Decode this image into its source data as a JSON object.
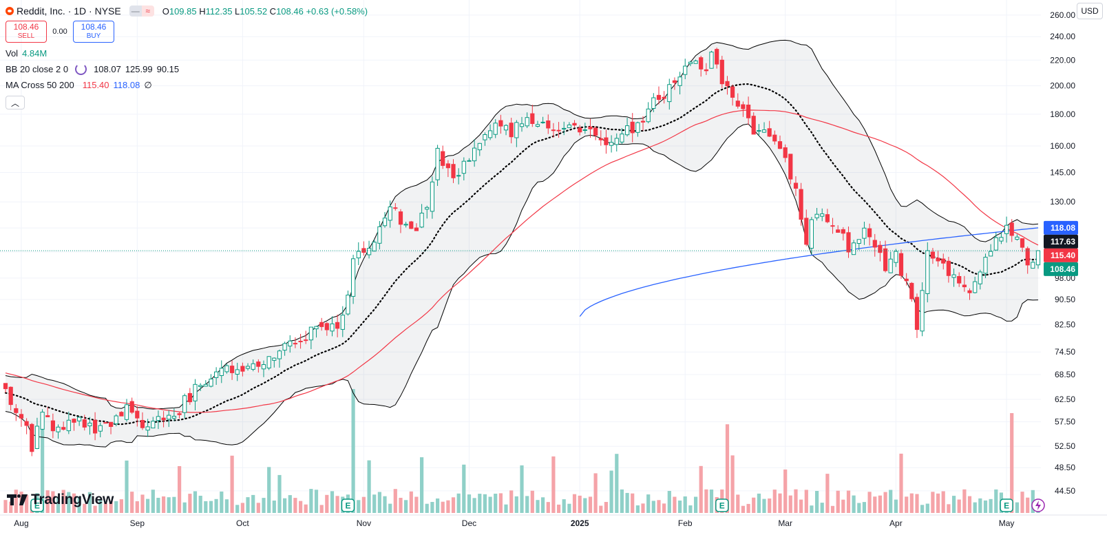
{
  "header": {
    "title": "Reddit, Inc. · 1D · NYSE",
    "ohlc": {
      "o_label": "O",
      "o": "109.85",
      "h_label": "H",
      "h": "112.35",
      "l_label": "L",
      "l": "105.52",
      "c_label": "C",
      "c": "108.46",
      "change": "+0.63 (+0.58%)"
    },
    "pill1": "—",
    "pill2": "≈"
  },
  "trade": {
    "sell_price": "108.46",
    "sell_label": "SELL",
    "spread": "0.00",
    "buy_price": "108.46",
    "buy_label": "BUY"
  },
  "indicators": {
    "vol": {
      "name": "Vol",
      "value": "4.84M"
    },
    "bb": {
      "name": "BB 20 close 2 0",
      "basis": "108.07",
      "upper": "125.99",
      "lower": "90.15"
    },
    "ma": {
      "name": "MA Cross 50 200",
      "ma50": "115.40",
      "ma200": "118.08",
      "extra": "∅"
    }
  },
  "currency": "USD",
  "brand": "TradingView",
  "colors": {
    "up": "#089981",
    "down": "#f23645",
    "ma50": "#f23645",
    "ma200": "#2962ff",
    "bb": "#000000",
    "volUp": "#8fd0c8",
    "volDown": "#f5a3a8"
  },
  "chart_data": {
    "type": "candlestick",
    "y_scale": "log",
    "ylim": [
      41.0,
      268.0
    ],
    "y_ticks": [
      260,
      240,
      220,
      200,
      180,
      160,
      145,
      130,
      118,
      108,
      98,
      90.5,
      82.5,
      74.5,
      68.5,
      62.5,
      57.5,
      52.5,
      48.5,
      44.5
    ],
    "price_tags": [
      {
        "value": 118.08,
        "label": "118.08",
        "color": "#2962ff"
      },
      {
        "value": 117.63,
        "label": "117.63",
        "color": "#131722"
      },
      {
        "value": 115.4,
        "label": "115.40",
        "color": "#f23645"
      },
      {
        "value": 108.46,
        "label": "108.46",
        "color": "#089981"
      }
    ],
    "last_price": 108.46,
    "x_ticks": [
      {
        "label": "Aug",
        "date": "2024-08-01"
      },
      {
        "label": "Sep",
        "date": "2024-09-03"
      },
      {
        "label": "Oct",
        "date": "2024-10-01"
      },
      {
        "label": "Nov",
        "date": "2024-11-01"
      },
      {
        "label": "Dec",
        "date": "2024-12-02"
      },
      {
        "label": "2025",
        "date": "2025-01-02"
      },
      {
        "label": "Feb",
        "date": "2025-02-03"
      },
      {
        "label": "Mar",
        "date": "2025-03-03"
      },
      {
        "label": "Apr",
        "date": "2025-04-01"
      },
      {
        "label": "May",
        "date": "2025-05-01"
      }
    ],
    "earnings_markers": [
      "2024-08-06",
      "2024-10-29",
      "2025-02-12",
      "2025-05-01"
    ],
    "anchors": [
      [
        "2024-07-29",
        65
      ],
      [
        "2024-07-30",
        61
      ],
      [
        "2024-07-31",
        59
      ],
      [
        "2024-08-02",
        56
      ],
      [
        "2024-08-05",
        52
      ],
      [
        "2024-08-07",
        59
      ],
      [
        "2024-08-09",
        56
      ],
      [
        "2024-08-13",
        57
      ],
      [
        "2024-08-16",
        58
      ],
      [
        "2024-08-21",
        55
      ],
      [
        "2024-08-27",
        58
      ],
      [
        "2024-08-29",
        60
      ],
      [
        "2024-09-04",
        57
      ],
      [
        "2024-09-09",
        59
      ],
      [
        "2024-09-12",
        58
      ],
      [
        "2024-09-16",
        62
      ],
      [
        "2024-09-19",
        66
      ],
      [
        "2024-09-24",
        70
      ],
      [
        "2024-09-27",
        69
      ],
      [
        "2024-10-02",
        71
      ],
      [
        "2024-10-08",
        73
      ],
      [
        "2024-10-11",
        76
      ],
      [
        "2024-10-16",
        78
      ],
      [
        "2024-10-21",
        82
      ],
      [
        "2024-10-25",
        82
      ],
      [
        "2024-10-28",
        84
      ],
      [
        "2024-10-30",
        104
      ],
      [
        "2024-11-01",
        109
      ],
      [
        "2024-11-05",
        112
      ],
      [
        "2024-11-08",
        127
      ],
      [
        "2024-11-12",
        122
      ],
      [
        "2024-11-15",
        119
      ],
      [
        "2024-11-19",
        128
      ],
      [
        "2024-11-21",
        157
      ],
      [
        "2024-11-26",
        143
      ],
      [
        "2024-12-02",
        152
      ],
      [
        "2024-12-05",
        165
      ],
      [
        "2024-12-09",
        172
      ],
      [
        "2024-12-12",
        168
      ],
      [
        "2024-12-16",
        176
      ],
      [
        "2024-12-19",
        170
      ],
      [
        "2024-12-23",
        174
      ],
      [
        "2024-12-27",
        172
      ],
      [
        "2025-01-02",
        171
      ],
      [
        "2025-01-06",
        172
      ],
      [
        "2025-01-10",
        163
      ],
      [
        "2025-01-14",
        168
      ],
      [
        "2025-01-17",
        170
      ],
      [
        "2025-01-22",
        178
      ],
      [
        "2025-01-27",
        192
      ],
      [
        "2025-01-31",
        204
      ],
      [
        "2025-02-04",
        220
      ],
      [
        "2025-02-07",
        215
      ],
      [
        "2025-02-10",
        222
      ],
      [
        "2025-02-13",
        196
      ],
      [
        "2025-02-18",
        188
      ],
      [
        "2025-02-21",
        170
      ],
      [
        "2025-02-26",
        165
      ],
      [
        "2025-03-03",
        155
      ],
      [
        "2025-03-05",
        135
      ],
      [
        "2025-03-07",
        113
      ],
      [
        "2025-03-11",
        127
      ],
      [
        "2025-03-14",
        121
      ],
      [
        "2025-03-19",
        110
      ],
      [
        "2025-03-24",
        118
      ],
      [
        "2025-03-28",
        103
      ],
      [
        "2025-04-01",
        106
      ],
      [
        "2025-04-04",
        92
      ],
      [
        "2025-04-07",
        82
      ],
      [
        "2025-04-09",
        108
      ],
      [
        "2025-04-14",
        102
      ],
      [
        "2025-04-17",
        96
      ],
      [
        "2025-04-22",
        94
      ],
      [
        "2025-04-25",
        106
      ],
      [
        "2025-04-29",
        113
      ],
      [
        "2025-05-01",
        117
      ],
      [
        "2025-05-05",
        113
      ],
      [
        "2025-05-07",
        104
      ],
      [
        "2025-05-09",
        108.46
      ]
    ],
    "ma200_start": {
      "date": "2025-01-02",
      "value": 85
    }
  }
}
